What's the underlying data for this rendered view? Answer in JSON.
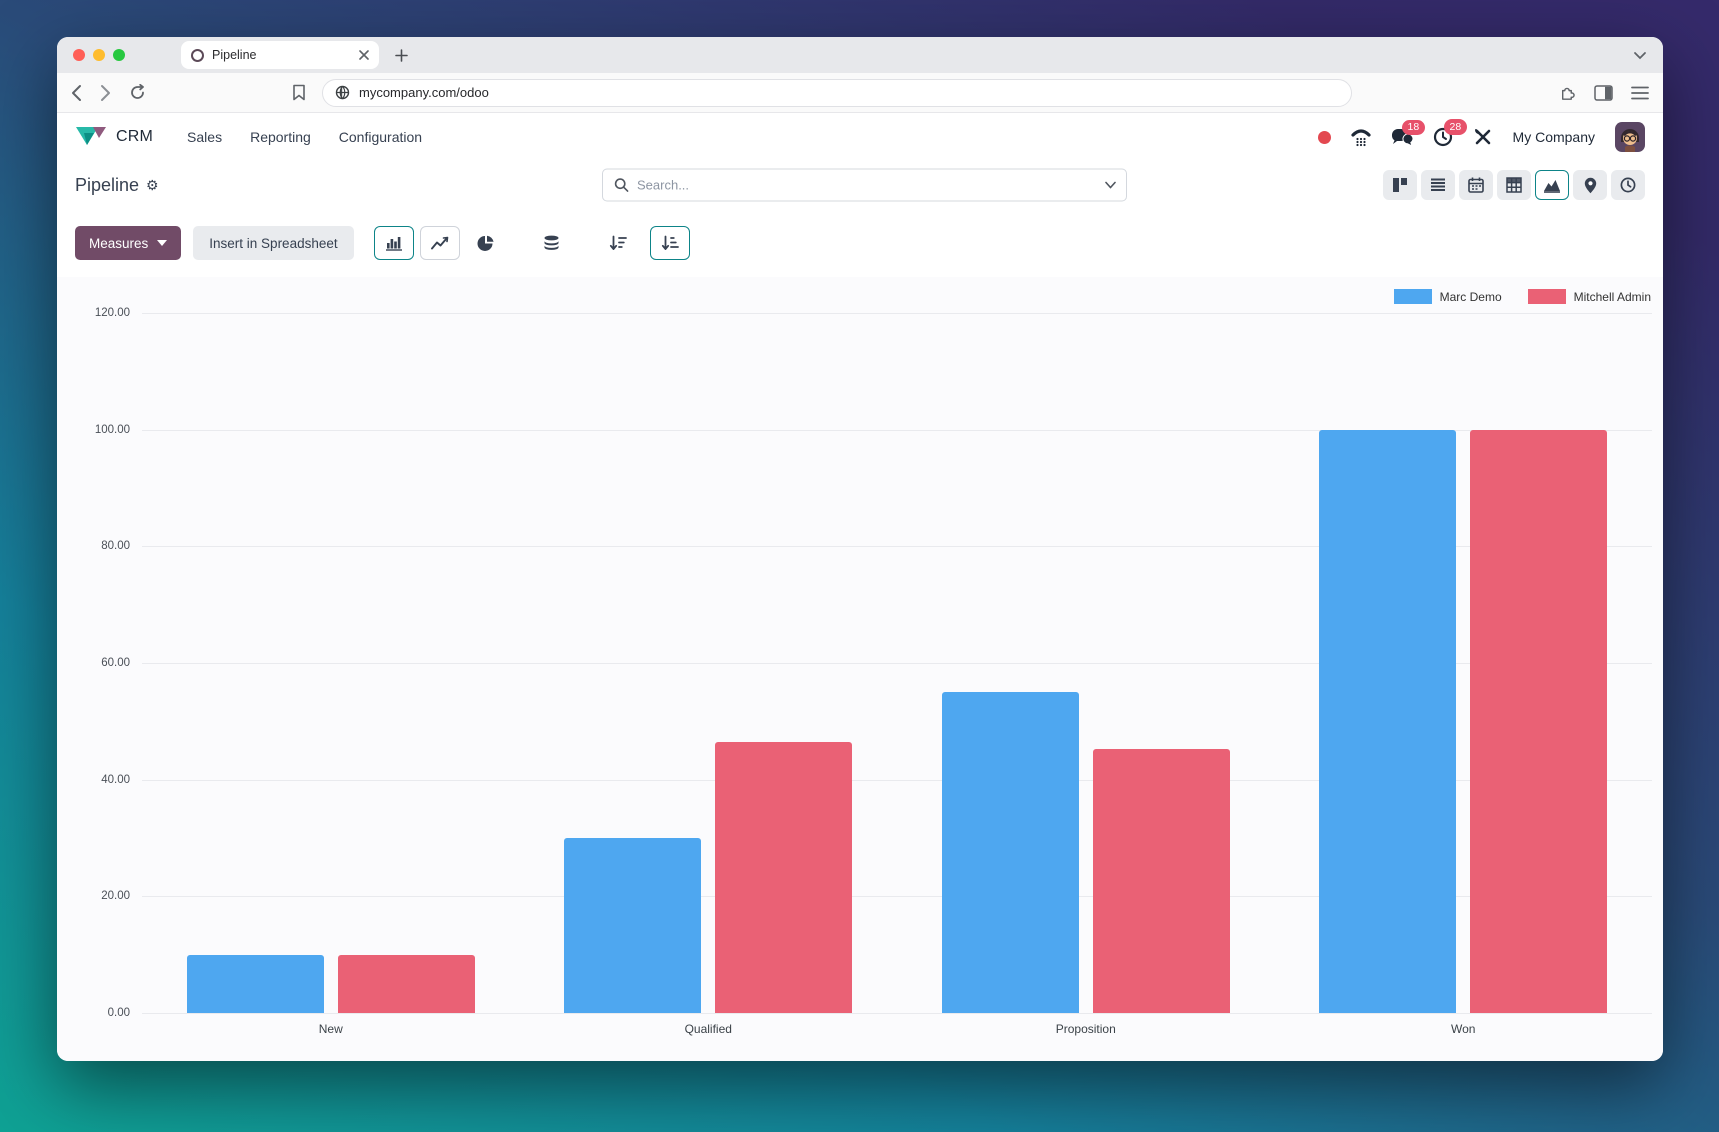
{
  "browser": {
    "tab_title": "Pipeline",
    "url": "mycompany.com/odoo"
  },
  "nav": {
    "app_name": "CRM",
    "menus": [
      {
        "label": "Sales"
      },
      {
        "label": "Reporting"
      },
      {
        "label": "Configuration"
      }
    ],
    "systray": {
      "messages_badge": "18",
      "activities_badge": "28",
      "company_name": "My Company"
    }
  },
  "control_panel": {
    "title": "Pipeline",
    "search_placeholder": "Search..."
  },
  "actions": {
    "measures_label": "Measures",
    "insert_spreadsheet_label": "Insert in Spreadsheet"
  },
  "icons": {
    "gear": "⚙"
  },
  "colors": {
    "accent_teal": "#0d8488",
    "primary_button": "#714B67",
    "badge_red": "#e7516a",
    "bar_blue": "#4EA7F0",
    "bar_red": "#EA6175"
  },
  "chart_data": {
    "type": "bar",
    "title": "",
    "categories": [
      "New",
      "Qualified",
      "Proposition",
      "Won"
    ],
    "series": [
      {
        "name": "Marc Demo",
        "color": "#4EA7F0",
        "values": [
          10,
          30,
          55,
          100
        ]
      },
      {
        "name": "Mitchell Admin",
        "color": "#EA6175",
        "values": [
          10,
          46.5,
          45.3,
          100
        ]
      }
    ],
    "xlabel": "",
    "ylabel": "",
    "ylim": [
      0,
      120
    ],
    "ytick_step": 20,
    "ytick_format": "two-decimals",
    "grid": true,
    "legend_position": "top-right"
  }
}
